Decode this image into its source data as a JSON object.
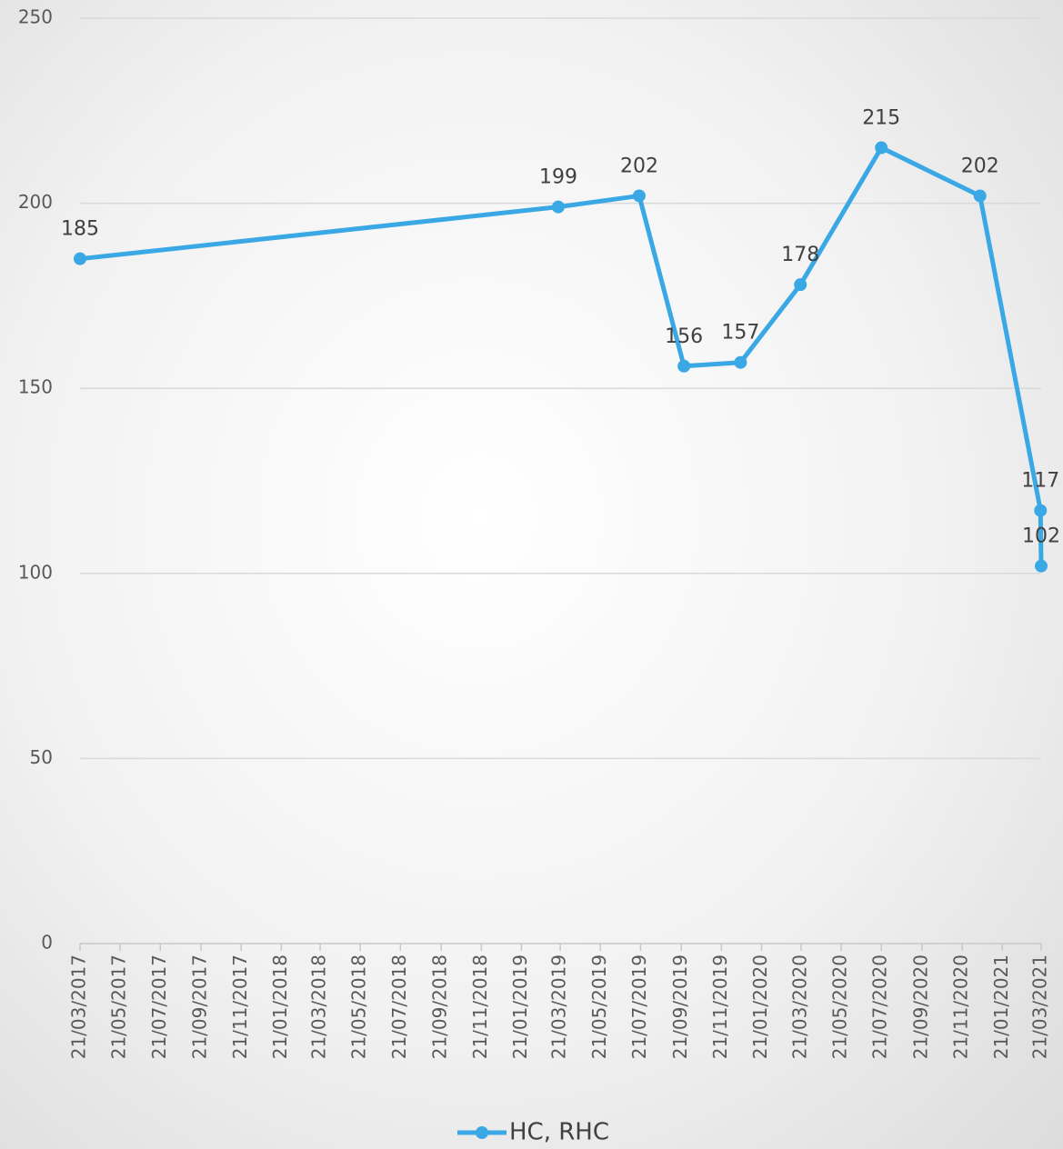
{
  "chart_data": {
    "type": "line",
    "x": [
      "2017-03-21",
      "2019-03-18",
      "2019-07-19",
      "2019-09-25",
      "2019-12-20",
      "2020-03-20",
      "2020-07-21",
      "2020-12-18",
      "2021-03-20",
      "2021-03-21"
    ],
    "series": [
      {
        "name": "HC, RHC",
        "color": "#3aa8e4",
        "values": [
          185,
          199,
          202,
          156,
          157,
          178,
          215,
          202,
          117,
          102
        ]
      }
    ],
    "xlim": [
      "2017-03-21",
      "2021-03-21"
    ],
    "xticks": [
      {
        "value": "2017-03-21",
        "label": "21/03/2017"
      },
      {
        "value": "2017-05-21",
        "label": "21/05/2017"
      },
      {
        "value": "2017-07-21",
        "label": "21/07/2017"
      },
      {
        "value": "2017-09-21",
        "label": "21/09/2017"
      },
      {
        "value": "2017-11-21",
        "label": "21/11/2017"
      },
      {
        "value": "2018-01-21",
        "label": "21/01/2018"
      },
      {
        "value": "2018-03-21",
        "label": "21/03/2018"
      },
      {
        "value": "2018-05-21",
        "label": "21/05/2018"
      },
      {
        "value": "2018-07-21",
        "label": "21/07/2018"
      },
      {
        "value": "2018-09-21",
        "label": "21/09/2018"
      },
      {
        "value": "2018-11-21",
        "label": "21/11/2018"
      },
      {
        "value": "2019-01-21",
        "label": "21/01/2019"
      },
      {
        "value": "2019-03-21",
        "label": "21/03/2019"
      },
      {
        "value": "2019-05-21",
        "label": "21/05/2019"
      },
      {
        "value": "2019-07-21",
        "label": "21/07/2019"
      },
      {
        "value": "2019-09-21",
        "label": "21/09/2019"
      },
      {
        "value": "2019-11-21",
        "label": "21/11/2019"
      },
      {
        "value": "2020-01-21",
        "label": "21/01/2020"
      },
      {
        "value": "2020-03-21",
        "label": "21/03/2020"
      },
      {
        "value": "2020-05-21",
        "label": "21/05/2020"
      },
      {
        "value": "2020-07-21",
        "label": "21/07/2020"
      },
      {
        "value": "2020-09-21",
        "label": "21/09/2020"
      },
      {
        "value": "2020-11-21",
        "label": "21/11/2020"
      },
      {
        "value": "2021-01-21",
        "label": "21/01/2021"
      },
      {
        "value": "2021-03-21",
        "label": "21/03/2021"
      }
    ],
    "ylim": [
      0,
      250
    ],
    "yticks": [
      0,
      50,
      100,
      150,
      200,
      250
    ],
    "grid": true,
    "legend": "bottom"
  }
}
